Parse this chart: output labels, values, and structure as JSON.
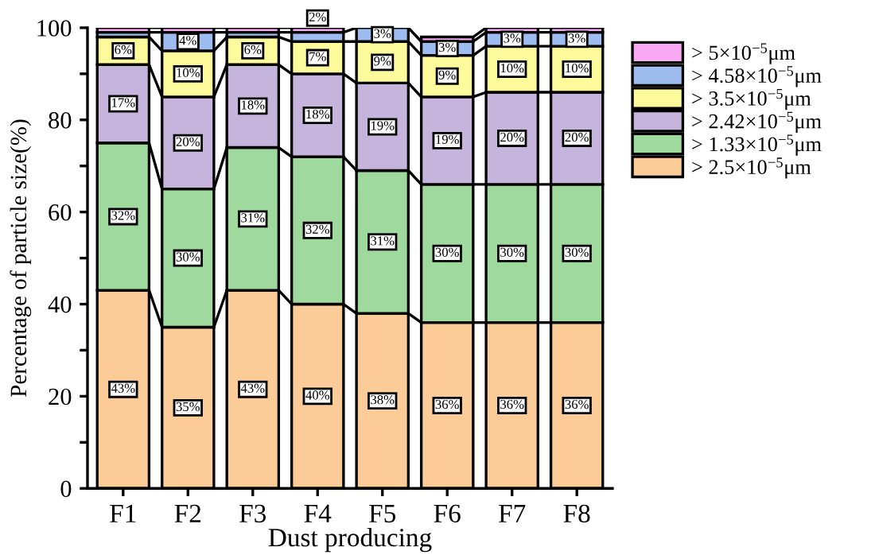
{
  "chart_data": {
    "type": "bar",
    "stacked": true,
    "xlabel": "Dust producing",
    "ylabel": "Percentage of particle size(%)",
    "categories": [
      "F1",
      "F2",
      "F3",
      "F4",
      "F5",
      "F6",
      "F7",
      "F8"
    ],
    "ylim": [
      0,
      100
    ],
    "yticks": [
      0,
      {
        "value": 10,
        "label": null
      },
      20,
      {
        "value": 30,
        "label": null
      },
      40,
      {
        "value": 50,
        "label": null
      },
      60,
      {
        "value": 70,
        "label": null
      },
      80,
      {
        "value": 90,
        "label": null
      },
      100
    ],
    "grid": false,
    "legend": "top right",
    "series": [
      {
        "name": "> 2.5×10$^{−5}$μm",
        "color": "#fbcb98",
        "values": [
          43,
          35,
          43,
          40,
          38,
          36,
          36,
          36
        ],
        "value_labels": [
          "43%",
          "35%",
          "43%",
          "40%",
          "38%",
          "36%",
          "36%",
          "36%"
        ]
      },
      {
        "name": "> 1.33×10$^{−5}$μm",
        "color": "#a0d99e",
        "values": [
          32,
          30,
          31,
          32,
          31,
          30,
          30,
          30
        ],
        "value_labels": [
          "32%",
          "30%",
          "31%",
          "32%",
          "31%",
          "30%",
          "30%",
          "30%"
        ]
      },
      {
        "name": "> 2.42×10$^{−5}$μm",
        "color": "#c5b5dd",
        "values": [
          17,
          20,
          18,
          18,
          19,
          19,
          20,
          20
        ],
        "value_labels": [
          "17%",
          "20%",
          "18%",
          "18%",
          "19%",
          "19%",
          "20%",
          "20%"
        ]
      },
      {
        "name": "> 3.5×10$^{−5}$μm",
        "color": "#fefb9d",
        "values": [
          6,
          10,
          6,
          7,
          9,
          9,
          10,
          10
        ],
        "value_labels": [
          "6%",
          "10%",
          "6%",
          "7%",
          "9%",
          "9%",
          "10%",
          "10%"
        ]
      },
      {
        "name": "> 4.58×10$^{−5}$μm",
        "color": "#9dbdf0",
        "values": [
          1,
          4,
          1,
          2,
          3,
          3,
          3,
          3
        ],
        "value_labels": [
          null,
          "4%",
          null,
          "2%",
          "3%",
          "3%",
          "3%",
          "3%"
        ]
      },
      {
        "name": "> 5×10$^{−5}$μm",
        "color": "#f9a9f4",
        "values": [
          1,
          1,
          1,
          1,
          null,
          1,
          1,
          1
        ],
        "value_labels": [
          null,
          null,
          null,
          null,
          null,
          null,
          null,
          null
        ]
      }
    ]
  }
}
